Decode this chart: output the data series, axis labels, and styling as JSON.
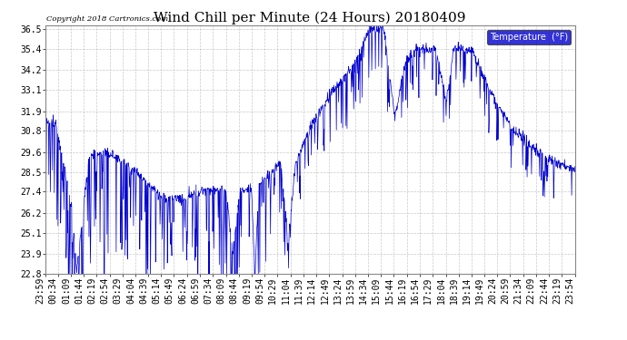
{
  "title": "Wind Chill per Minute (24 Hours) 20180409",
  "copyright_text": "Copyright 2018 Cartronics.com",
  "legend_label": "Temperature  (°F)",
  "y_ticks": [
    22.8,
    23.9,
    25.1,
    26.2,
    27.4,
    28.5,
    29.6,
    30.8,
    31.9,
    33.1,
    34.2,
    35.4,
    36.5
  ],
  "y_min": 22.8,
  "y_max": 36.5,
  "line_color": "#0000cc",
  "background_color": "#ffffff",
  "plot_bg_color": "#ffffff",
  "grid_color": "#bbbbbb",
  "title_fontsize": 11,
  "tick_fontsize": 7,
  "x_label_rotation": 90,
  "legend_bg_color": "#0000cc",
  "legend_text_color": "#ffffff",
  "time_labels": [
    "23:59",
    "00:34",
    "01:09",
    "01:44",
    "02:19",
    "02:54",
    "03:29",
    "04:04",
    "04:39",
    "05:14",
    "05:49",
    "06:24",
    "06:59",
    "07:34",
    "08:09",
    "08:44",
    "09:19",
    "09:54",
    "10:29",
    "11:04",
    "11:39",
    "12:14",
    "12:49",
    "13:24",
    "13:59",
    "14:34",
    "15:09",
    "15:44",
    "16:19",
    "16:54",
    "17:29",
    "18:04",
    "18:39",
    "19:14",
    "19:49",
    "20:24",
    "20:59",
    "21:34",
    "22:09",
    "22:44",
    "23:19",
    "23:54"
  ]
}
